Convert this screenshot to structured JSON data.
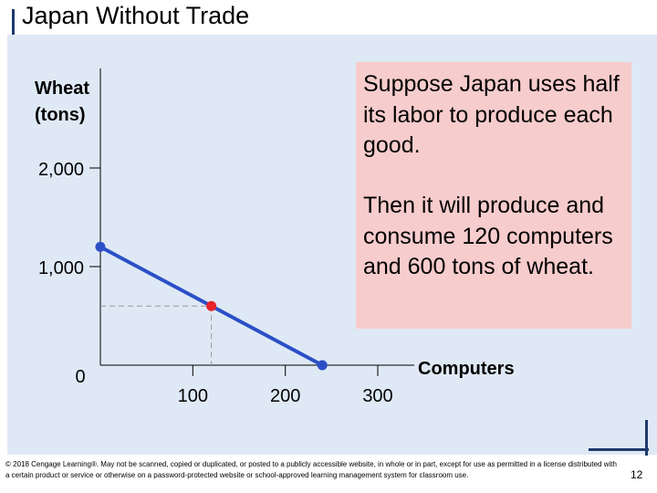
{
  "slide": {
    "title": "Japan Without Trade",
    "callout_line1": "Suppose Japan uses half its labor to produce each good.",
    "callout_line2": "Then it will produce and consume 120 computers and 600 tons of wheat.",
    "copyright": "© 2018 Cengage Learning®. May not be scanned, copied or duplicated, or posted to a publicly accessible website, in whole or in part, except for use as permitted in a license distributed with a certain product or service or otherwise on a password-protected website or school-approved learning management system for classroom use.",
    "page_number": "12"
  },
  "chart_data": {
    "type": "line",
    "ylabel_line1": "Wheat",
    "ylabel_line2": "(tons)",
    "xlabel": "Computers",
    "xlim": [
      0,
      300
    ],
    "ylim": [
      0,
      2000
    ],
    "x_ticks": [
      100,
      200,
      300
    ],
    "y_ticks": [
      1000,
      2000
    ],
    "origin_label": "0",
    "series": [
      {
        "points": [
          {
            "x": 0,
            "y": 1200
          },
          {
            "x": 240,
            "y": 0
          }
        ],
        "color": "#2b4fc7"
      }
    ],
    "highlight_point": {
      "x": 120,
      "y": 600,
      "color": "#e8232b"
    },
    "endpoint_color": "#2b4fc7"
  }
}
